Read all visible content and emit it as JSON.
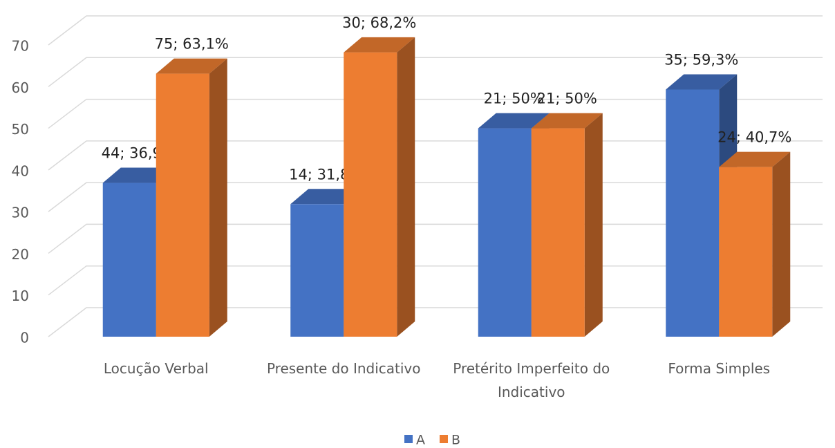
{
  "chart_data": {
    "type": "bar3d",
    "categories": [
      "Locução Verbal",
      "Presente do Indicativo",
      "Pretérito Imperfeito do Indicativo",
      "Forma Simples"
    ],
    "series": [
      {
        "name": "A",
        "color": "#4472c4",
        "values": [
          36.9,
          31.8,
          50,
          59.3
        ],
        "value_labels": [
          "44; 36,9%",
          "14; 31,8%",
          "21; 50%",
          "35; 59,3%"
        ]
      },
      {
        "name": "B",
        "color": "#ed7d31",
        "values": [
          63.1,
          68.2,
          50,
          40.7
        ],
        "value_labels": [
          "75; 63,1%",
          "30; 68,2%",
          "21; 50%",
          "24; 40,7%"
        ]
      }
    ],
    "ylim": [
      0,
      70
    ],
    "yticks": [
      0,
      10,
      20,
      30,
      40,
      50,
      60,
      70
    ],
    "grid": true,
    "legend": "bottom"
  }
}
